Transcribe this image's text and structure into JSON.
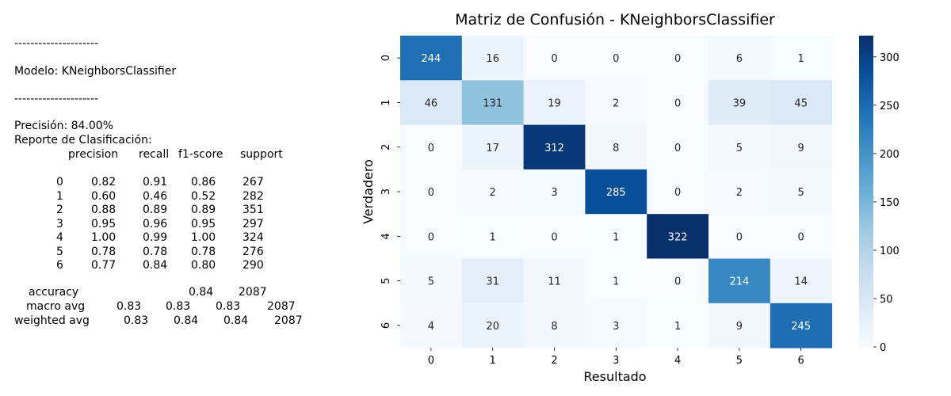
{
  "report": {
    "separator": "---------------------",
    "model_line": "Modelo: KNeighborsClassifier",
    "accuracy_line": "Precisión: 84.00%",
    "report_title": "Reporte de Clasificación:",
    "headers": [
      "precision",
      "recall",
      "f1-score",
      "support"
    ],
    "rows": [
      {
        "label": "0",
        "values": [
          "0.82",
          "0.91",
          "0.86",
          "267"
        ]
      },
      {
        "label": "1",
        "values": [
          "0.60",
          "0.46",
          "0.52",
          "282"
        ]
      },
      {
        "label": "2",
        "values": [
          "0.88",
          "0.89",
          "0.89",
          "351"
        ]
      },
      {
        "label": "3",
        "values": [
          "0.95",
          "0.96",
          "0.95",
          "297"
        ]
      },
      {
        "label": "4",
        "values": [
          "1.00",
          "0.99",
          "1.00",
          "324"
        ]
      },
      {
        "label": "5",
        "values": [
          "0.78",
          "0.78",
          "0.78",
          "276"
        ]
      },
      {
        "label": "6",
        "values": [
          "0.77",
          "0.84",
          "0.80",
          "290"
        ]
      }
    ],
    "accuracy_row": {
      "label": "accuracy",
      "f1": "0.84",
      "support": "2087"
    },
    "macro_row": {
      "label": "macro avg",
      "values": [
        "0.83",
        "0.83",
        "0.83",
        "2087"
      ]
    },
    "weighted_row": {
      "label": "weighted avg",
      "values": [
        "0.83",
        "0.84",
        "0.84",
        "2087"
      ]
    }
  },
  "chart_data": {
    "type": "heatmap",
    "title": "Matriz de Confusión - KNeighborsClassifier",
    "xlabel": "Resultado",
    "ylabel": "Verdadero",
    "x_categories": [
      "0",
      "1",
      "2",
      "3",
      "4",
      "5",
      "6"
    ],
    "y_categories": [
      "0",
      "1",
      "2",
      "3",
      "4",
      "5",
      "6"
    ],
    "matrix": [
      [
        244,
        16,
        0,
        0,
        0,
        6,
        1
      ],
      [
        46,
        131,
        19,
        2,
        0,
        39,
        45
      ],
      [
        0,
        17,
        312,
        8,
        0,
        5,
        9
      ],
      [
        0,
        2,
        3,
        285,
        0,
        2,
        5
      ],
      [
        0,
        1,
        0,
        1,
        322,
        0,
        0
      ],
      [
        5,
        31,
        11,
        1,
        0,
        214,
        14
      ],
      [
        4,
        20,
        8,
        3,
        1,
        9,
        245
      ]
    ],
    "colormap": "Blues",
    "vmin": 0,
    "vmax": 322,
    "colorbar_ticks": [
      0,
      50,
      100,
      150,
      200,
      250,
      300
    ],
    "annotations": true
  }
}
